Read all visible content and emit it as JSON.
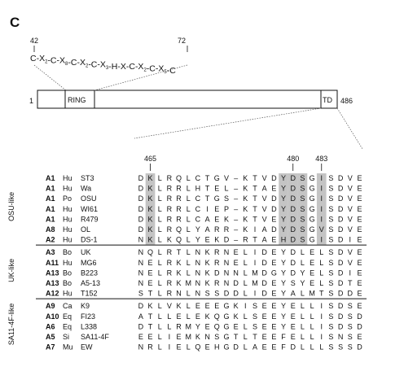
{
  "panel_label": "C",
  "motif": {
    "start": "42",
    "end": "72",
    "tokens": [
      {
        "t": "C",
        "s": ""
      },
      {
        "t": "-X",
        "s": "2"
      },
      {
        "t": "-C",
        "s": ""
      },
      {
        "t": "-X",
        "s": "8"
      },
      {
        "t": "-C",
        "s": ""
      },
      {
        "t": "-X",
        "s": "2"
      },
      {
        "t": "-C",
        "s": ""
      },
      {
        "t": "-X",
        "s": "3"
      },
      {
        "t": "-H",
        "s": ""
      },
      {
        "t": "-X",
        "s": ""
      },
      {
        "t": "-C",
        "s": ""
      },
      {
        "t": "-X",
        "s": "2"
      },
      {
        "t": "-C",
        "s": ""
      },
      {
        "t": "-X",
        "s": "5"
      },
      {
        "t": "-C",
        "s": ""
      }
    ]
  },
  "protein": {
    "start": "1",
    "end": "486",
    "ring_label": "RING",
    "td_label": "TD",
    "length": 486,
    "ring_range": [
      42,
      72
    ],
    "td_range": [
      465,
      486
    ]
  },
  "alignment": {
    "markers": [
      {
        "label": "465",
        "col": 1
      },
      {
        "label": "480",
        "col": 16
      },
      {
        "label": "483",
        "col": 19
      }
    ],
    "shaded_columns": [
      1,
      15,
      16,
      17,
      19
    ],
    "shade_rows": {
      "from": 0,
      "to": 6
    },
    "groups": [
      {
        "name": "OSU-like",
        "rows": [
          {
            "id": "A1",
            "species": "Hu",
            "strain": "ST3",
            "seq": "DKLRQLCTGV-KTVDYDSGISDVE"
          },
          {
            "id": "A1",
            "species": "Hu",
            "strain": "Wa",
            "seq": "DKLRRLHTEL-KTAEYDSGISDVE"
          },
          {
            "id": "A1",
            "species": "Po",
            "strain": "OSU",
            "seq": "DKLRRLCTGS-KTVDYDSGISDVE"
          },
          {
            "id": "A1",
            "species": "Hu",
            "strain": "WI61",
            "seq": "DKLRRLCIEP-KTVDYDSGISDVE"
          },
          {
            "id": "A1",
            "species": "Hu",
            "strain": "R479",
            "seq": "DKLRRLCAEK-KTVEYDSGISDVE"
          },
          {
            "id": "A8",
            "species": "Hu",
            "strain": "OL",
            "seq": "DKLRQLYARR-KIADYDSGVSDVE"
          },
          {
            "id": "A2",
            "species": "Hu",
            "strain": "DS-1",
            "seq": "NKLKQLYEKD-RTAEHDSGISDIE"
          }
        ]
      },
      {
        "name": "UK-like",
        "rows": [
          {
            "id": "A3",
            "species": "Bo",
            "strain": "UK",
            "seq": "NQLRTLNKRNELIDEYDLELSDVE"
          },
          {
            "id": "A11",
            "species": "Hu",
            "strain": "MG6",
            "seq": "NELRKLNKRNELIDEYDLELSDVE"
          },
          {
            "id": "A13",
            "species": "Bo",
            "strain": "B223",
            "seq": "NELRKLNKDNNLMDGYDYELSDIE"
          },
          {
            "id": "A13",
            "species": "Bo",
            "strain": "A5-13",
            "seq": "NELRKMNKRNDLMDEYSYELSDTE"
          },
          {
            "id": "A12",
            "species": "Hu",
            "strain": "T152",
            "seq": "STLRNLNSSDDLIDEYALMTSDDE"
          }
        ]
      },
      {
        "name": "SA11-4F-like",
        "rows": [
          {
            "id": "A9",
            "species": "Ca",
            "strain": "K9",
            "seq": "DKLVKLEEEGKISEEYELLISDSE"
          },
          {
            "id": "A10",
            "species": "Eq",
            "strain": "FI23",
            "seq": "ATLLELEKQGKLSEEYELLISDSD"
          },
          {
            "id": "A6",
            "species": "Eq",
            "strain": "L338",
            "seq": "DTLLRMYEQGELSEEYELLISDSD"
          },
          {
            "id": "A5",
            "species": "Si",
            "strain": "SA11-4F",
            "seq": "EELIEMKNSGTLTEEFELLISNSE"
          },
          {
            "id": "A7",
            "species": "Mu",
            "strain": "EW",
            "seq": "NRLIELQEHGDLAEEFDLLLSSSD"
          }
        ]
      }
    ]
  }
}
